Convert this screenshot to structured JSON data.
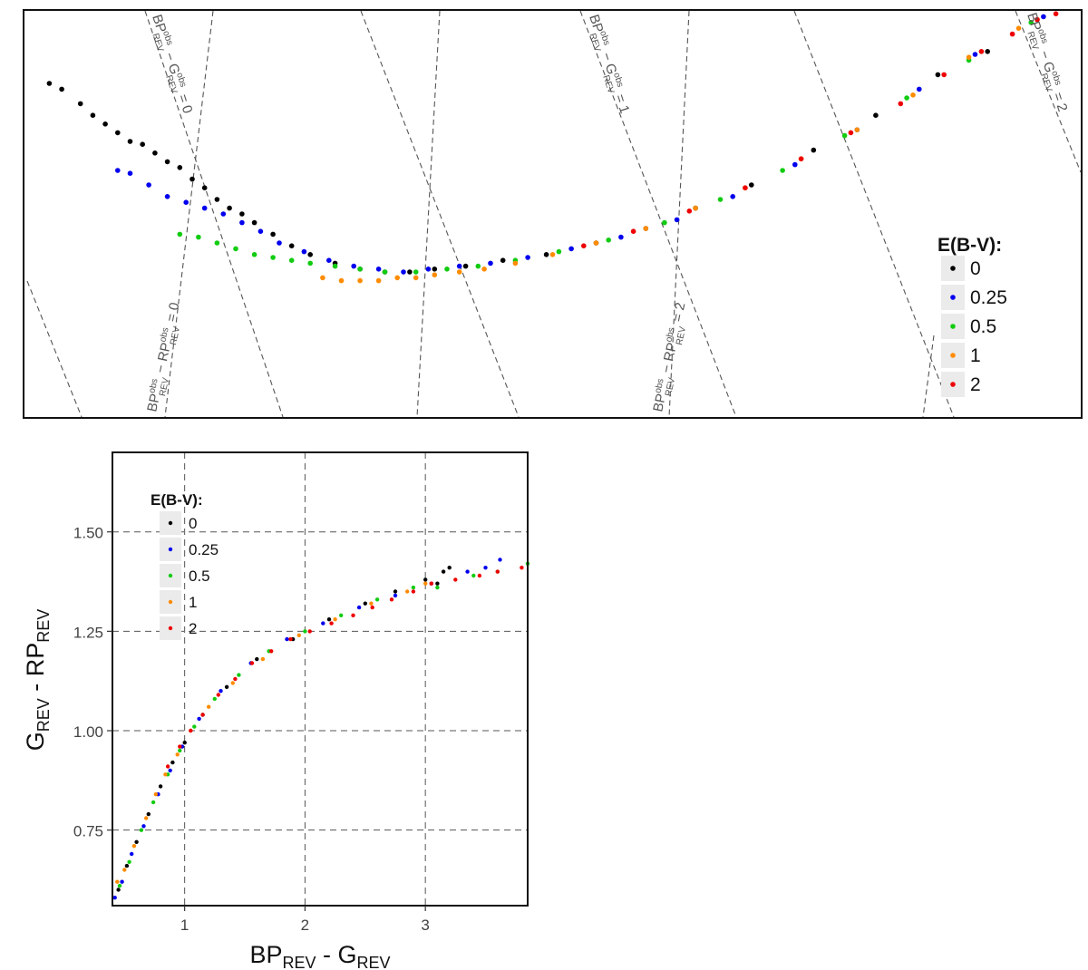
{
  "chart_data": [
    {
      "type": "scatter",
      "panel": "top",
      "axes_shown": false,
      "xlim": [
        -0.7,
        2.7
      ],
      "ylim": [
        -0.7,
        0.7
      ],
      "grid": false,
      "legend": {
        "title": "E(B-V):",
        "placement": "right",
        "entries": [
          "0",
          "0.25",
          "0.5",
          "1",
          "2"
        ]
      },
      "guide_lines": {
        "style": "dashed",
        "labels": [
          {
            "base": "BP",
            "sub": "REV",
            "sup": "obs",
            "minus": "G",
            "sub2": "REV",
            "sup2": "obs",
            "value": "0"
          },
          {
            "base": "BP",
            "sub": "REV",
            "sup": "obs",
            "minus": "G",
            "sub2": "REV",
            "sup2": "obs",
            "value": "1"
          },
          {
            "base": "BP",
            "sub": "REV",
            "sup": "obs",
            "minus": "G",
            "sub2": "REV",
            "sup2": "obs",
            "value": "2"
          },
          {
            "base": "BP",
            "sub": "REV",
            "sup": "obs",
            "minus": "RP",
            "sub2": "REV",
            "sup2": "obs",
            "value": "0"
          },
          {
            "base": "BP",
            "sub": "REV",
            "sup": "obs",
            "minus": "RP",
            "sub2": "REV",
            "sup2": "obs",
            "value": "2"
          }
        ]
      },
      "series": [
        {
          "name": "0",
          "color": "#000000",
          "points": [
            [
              -0.62,
              0.45
            ],
            [
              -0.58,
              0.43
            ],
            [
              -0.52,
              0.38
            ],
            [
              -0.48,
              0.34
            ],
            [
              -0.44,
              0.31
            ],
            [
              -0.4,
              0.28
            ],
            [
              -0.36,
              0.25
            ],
            [
              -0.32,
              0.24
            ],
            [
              -0.28,
              0.21
            ],
            [
              -0.24,
              0.18
            ],
            [
              -0.2,
              0.16
            ],
            [
              -0.16,
              0.12
            ],
            [
              -0.12,
              0.09
            ],
            [
              -0.08,
              0.05
            ],
            [
              -0.04,
              0.02
            ],
            [
              0.0,
              0.0
            ],
            [
              0.04,
              -0.03
            ],
            [
              0.1,
              -0.07
            ],
            [
              0.16,
              -0.11
            ],
            [
              0.22,
              -0.14
            ],
            [
              0.3,
              -0.17
            ],
            [
              0.38,
              -0.19
            ],
            [
              0.46,
              -0.2
            ],
            [
              0.54,
              -0.2
            ],
            [
              0.62,
              -0.19
            ],
            [
              0.72,
              -0.18
            ],
            [
              0.84,
              -0.16
            ],
            [
              0.98,
              -0.14
            ],
            [
              1.14,
              -0.1
            ],
            [
              1.3,
              -0.05
            ],
            [
              1.46,
              0.02
            ],
            [
              1.64,
              0.1
            ],
            [
              1.84,
              0.22
            ],
            [
              2.04,
              0.34
            ],
            [
              2.24,
              0.48
            ],
            [
              2.4,
              0.56
            ]
          ]
        },
        {
          "name": "0.25",
          "color": "#0000ee",
          "points": [
            [
              -0.4,
              0.15
            ],
            [
              -0.36,
              0.14
            ],
            [
              -0.3,
              0.1
            ],
            [
              -0.24,
              0.06
            ],
            [
              -0.18,
              0.04
            ],
            [
              -0.12,
              0.02
            ],
            [
              -0.06,
              0.0
            ],
            [
              0.0,
              -0.03
            ],
            [
              0.06,
              -0.06
            ],
            [
              0.12,
              -0.1
            ],
            [
              0.2,
              -0.13
            ],
            [
              0.28,
              -0.16
            ],
            [
              0.36,
              -0.18
            ],
            [
              0.44,
              -0.19
            ],
            [
              0.52,
              -0.2
            ],
            [
              0.6,
              -0.19
            ],
            [
              0.7,
              -0.18
            ],
            [
              0.8,
              -0.17
            ],
            [
              0.92,
              -0.15
            ],
            [
              1.06,
              -0.12
            ],
            [
              1.22,
              -0.08
            ],
            [
              1.4,
              -0.02
            ],
            [
              1.58,
              0.06
            ],
            [
              1.78,
              0.17
            ],
            [
              1.98,
              0.29
            ],
            [
              2.18,
              0.43
            ],
            [
              2.36,
              0.55
            ],
            [
              2.58,
              0.68
            ]
          ]
        },
        {
          "name": "0.5",
          "color": "#11cc11",
          "points": [
            [
              -0.2,
              -0.07
            ],
            [
              -0.14,
              -0.08
            ],
            [
              -0.08,
              -0.1
            ],
            [
              -0.02,
              -0.12
            ],
            [
              0.04,
              -0.14
            ],
            [
              0.1,
              -0.15
            ],
            [
              0.16,
              -0.16
            ],
            [
              0.22,
              -0.17
            ],
            [
              0.3,
              -0.18
            ],
            [
              0.38,
              -0.19
            ],
            [
              0.46,
              -0.2
            ],
            [
              0.56,
              -0.2
            ],
            [
              0.66,
              -0.19
            ],
            [
              0.76,
              -0.18
            ],
            [
              0.88,
              -0.16
            ],
            [
              1.02,
              -0.13
            ],
            [
              1.18,
              -0.09
            ],
            [
              1.36,
              -0.03
            ],
            [
              1.54,
              0.05
            ],
            [
              1.74,
              0.15
            ],
            [
              1.94,
              0.27
            ],
            [
              2.14,
              0.4
            ],
            [
              2.34,
              0.53
            ],
            [
              2.54,
              0.66
            ]
          ]
        },
        {
          "name": "1",
          "color": "#ff8c00",
          "points": [
            [
              0.26,
              -0.22
            ],
            [
              0.32,
              -0.23
            ],
            [
              0.38,
              -0.23
            ],
            [
              0.44,
              -0.23
            ],
            [
              0.5,
              -0.22
            ],
            [
              0.56,
              -0.22
            ],
            [
              0.62,
              -0.21
            ],
            [
              0.7,
              -0.2
            ],
            [
              0.78,
              -0.19
            ],
            [
              0.88,
              -0.17
            ],
            [
              1.0,
              -0.14
            ],
            [
              1.14,
              -0.1
            ],
            [
              1.3,
              -0.05
            ],
            [
              1.46,
              0.02
            ],
            [
              1.62,
              0.09
            ],
            [
              1.8,
              0.19
            ],
            [
              1.98,
              0.29
            ],
            [
              2.16,
              0.41
            ],
            [
              2.34,
              0.54
            ],
            [
              2.5,
              0.64
            ]
          ]
        },
        {
          "name": "2",
          "color": "#ee0000",
          "points": [
            [
              1.1,
              -0.11
            ],
            [
              1.26,
              -0.06
            ],
            [
              1.44,
              0.01
            ],
            [
              1.62,
              0.09
            ],
            [
              1.8,
              0.19
            ],
            [
              1.96,
              0.28
            ],
            [
              2.12,
              0.38
            ],
            [
              2.26,
              0.48
            ],
            [
              2.38,
              0.56
            ],
            [
              2.48,
              0.62
            ],
            [
              2.56,
              0.67
            ],
            [
              2.62,
              0.69
            ]
          ]
        }
      ]
    },
    {
      "type": "scatter",
      "panel": "bottom",
      "xlabel": {
        "main": "BP",
        "sub": "REV",
        "minus": "G",
        "sub2": "REV"
      },
      "ylabel": {
        "main": "G",
        "sub": "REV",
        "minus": "RP",
        "sub2": "REV"
      },
      "xlim": [
        0.4,
        3.85
      ],
      "ylim": [
        0.56,
        1.7
      ],
      "xticks": [
        1,
        2,
        3
      ],
      "xtick_labels": [
        "1",
        "2",
        "3"
      ],
      "yticks": [
        0.75,
        1.0,
        1.25,
        1.5
      ],
      "ytick_labels": [
        "0.75",
        "1.00",
        "1.25",
        "1.50"
      ],
      "grid": true,
      "legend": {
        "title": "E(B-V):",
        "placement": "top-left",
        "entries": [
          "0",
          "0.25",
          "0.5",
          "1",
          "2"
        ]
      },
      "series": [
        {
          "name": "0",
          "color": "#000000",
          "points": [
            [
              0.45,
              0.6
            ],
            [
              0.52,
              0.66
            ],
            [
              0.6,
              0.72
            ],
            [
              0.7,
              0.79
            ],
            [
              0.8,
              0.86
            ],
            [
              0.9,
              0.92
            ],
            [
              1.0,
              0.97
            ],
            [
              1.15,
              1.04
            ],
            [
              1.35,
              1.11
            ],
            [
              1.6,
              1.18
            ],
            [
              1.9,
              1.23
            ],
            [
              2.2,
              1.28
            ],
            [
              2.5,
              1.32
            ],
            [
              2.75,
              1.35
            ],
            [
              3.0,
              1.38
            ],
            [
              3.1,
              1.37
            ],
            [
              3.15,
              1.4
            ],
            [
              3.2,
              1.41
            ]
          ]
        },
        {
          "name": "0.25",
          "color": "#0000ee",
          "points": [
            [
              0.42,
              0.58
            ],
            [
              0.48,
              0.62
            ],
            [
              0.56,
              0.69
            ],
            [
              0.66,
              0.76
            ],
            [
              0.78,
              0.84
            ],
            [
              0.88,
              0.9
            ],
            [
              0.98,
              0.96
            ],
            [
              1.12,
              1.03
            ],
            [
              1.3,
              1.1
            ],
            [
              1.55,
              1.17
            ],
            [
              1.85,
              1.23
            ],
            [
              2.15,
              1.27
            ],
            [
              2.45,
              1.31
            ],
            [
              2.75,
              1.34
            ],
            [
              3.05,
              1.37
            ],
            [
              3.35,
              1.4
            ],
            [
              3.5,
              1.41
            ],
            [
              3.62,
              1.43
            ]
          ]
        },
        {
          "name": "0.5",
          "color": "#11cc11",
          "points": [
            [
              0.46,
              0.61
            ],
            [
              0.54,
              0.67
            ],
            [
              0.64,
              0.75
            ],
            [
              0.74,
              0.82
            ],
            [
              0.86,
              0.89
            ],
            [
              0.96,
              0.95
            ],
            [
              1.08,
              1.01
            ],
            [
              1.25,
              1.08
            ],
            [
              1.45,
              1.14
            ],
            [
              1.7,
              1.2
            ],
            [
              2.0,
              1.25
            ],
            [
              2.3,
              1.29
            ],
            [
              2.6,
              1.33
            ],
            [
              2.9,
              1.36
            ],
            [
              3.1,
              1.36
            ],
            [
              3.4,
              1.39
            ],
            [
              3.6,
              1.4
            ],
            [
              3.85,
              1.42
            ]
          ]
        },
        {
          "name": "1",
          "color": "#ff8c00",
          "points": [
            [
              0.44,
              0.62
            ],
            [
              0.5,
              0.65
            ],
            [
              0.58,
              0.71
            ],
            [
              0.68,
              0.78
            ],
            [
              0.76,
              0.84
            ],
            [
              0.84,
              0.89
            ],
            [
              0.94,
              0.94
            ],
            [
              1.05,
              1.0
            ],
            [
              1.2,
              1.06
            ],
            [
              1.4,
              1.12
            ],
            [
              1.65,
              1.18
            ],
            [
              1.95,
              1.24
            ],
            [
              2.25,
              1.28
            ],
            [
              2.55,
              1.32
            ],
            [
              2.85,
              1.35
            ],
            [
              3.0,
              1.37
            ]
          ]
        },
        {
          "name": "2",
          "color": "#ee0000",
          "points": [
            [
              0.86,
              0.91
            ],
            [
              0.96,
              0.96
            ],
            [
              1.05,
              1.0
            ],
            [
              1.15,
              1.04
            ],
            [
              1.28,
              1.09
            ],
            [
              1.42,
              1.13
            ],
            [
              1.56,
              1.17
            ],
            [
              1.72,
              1.2
            ],
            [
              1.88,
              1.23
            ],
            [
              2.04,
              1.25
            ],
            [
              2.22,
              1.27
            ],
            [
              2.4,
              1.29
            ],
            [
              2.56,
              1.31
            ],
            [
              2.72,
              1.33
            ],
            [
              2.9,
              1.35
            ],
            [
              3.05,
              1.37
            ],
            [
              3.25,
              1.38
            ],
            [
              3.45,
              1.39
            ],
            [
              3.6,
              1.4
            ],
            [
              3.8,
              1.41
            ]
          ]
        }
      ]
    }
  ]
}
